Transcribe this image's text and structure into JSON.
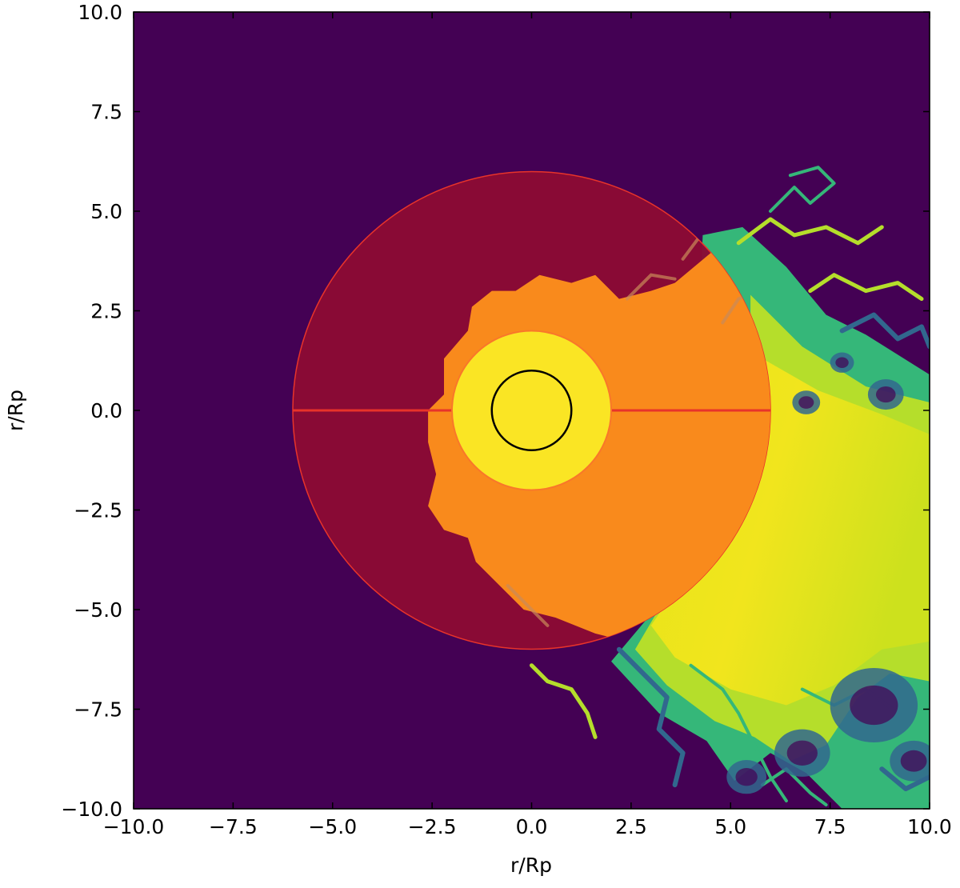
{
  "chart_data": {
    "type": "heatmap",
    "title": "",
    "xlabel": "r/Rp",
    "ylabel": "r/Rp",
    "xlim": [
      -10.0,
      10.0
    ],
    "ylim": [
      -10.0,
      10.0
    ],
    "x_ticks": [
      "−10.0",
      "−7.5",
      "−5.0",
      "−2.5",
      "0.0",
      "2.5",
      "5.0",
      "7.5",
      "10.0"
    ],
    "y_ticks": [
      "10.0",
      "7.5",
      "5.0",
      "2.5",
      "0.0",
      "−2.5",
      "−5.0",
      "−7.5",
      "−10.0"
    ],
    "x_tick_values": [
      -10,
      -7.5,
      -5,
      -2.5,
      0,
      2.5,
      5,
      7.5,
      10
    ],
    "y_tick_values": [
      10,
      7.5,
      5,
      2.5,
      0,
      -2.5,
      -5,
      -7.5,
      -10
    ],
    "grid": false,
    "background_color": "#440154",
    "regions": [
      {
        "shape": "circle",
        "cx": 0,
        "cy": 0,
        "r": 6,
        "color": "#8b0a35",
        "line_color": "#e8332a"
      },
      {
        "shape": "circle",
        "cx": 0,
        "cy": 0,
        "r": 2,
        "color": "#fae524",
        "line_color": "#f9772a"
      },
      {
        "shape": "circle",
        "cx": 0,
        "cy": 0,
        "r": 1,
        "color": "none",
        "line_color": "#000000"
      }
    ],
    "divider_line": {
      "y": 0,
      "x_from": -6,
      "x_to": 6,
      "color": "#e8332a"
    },
    "outflow_colors": {
      "dense": "#fae524",
      "mid": "#b5de2b",
      "edge": "#35b779",
      "thin": "#31688e"
    },
    "overlap_color": "#f98a1c"
  }
}
